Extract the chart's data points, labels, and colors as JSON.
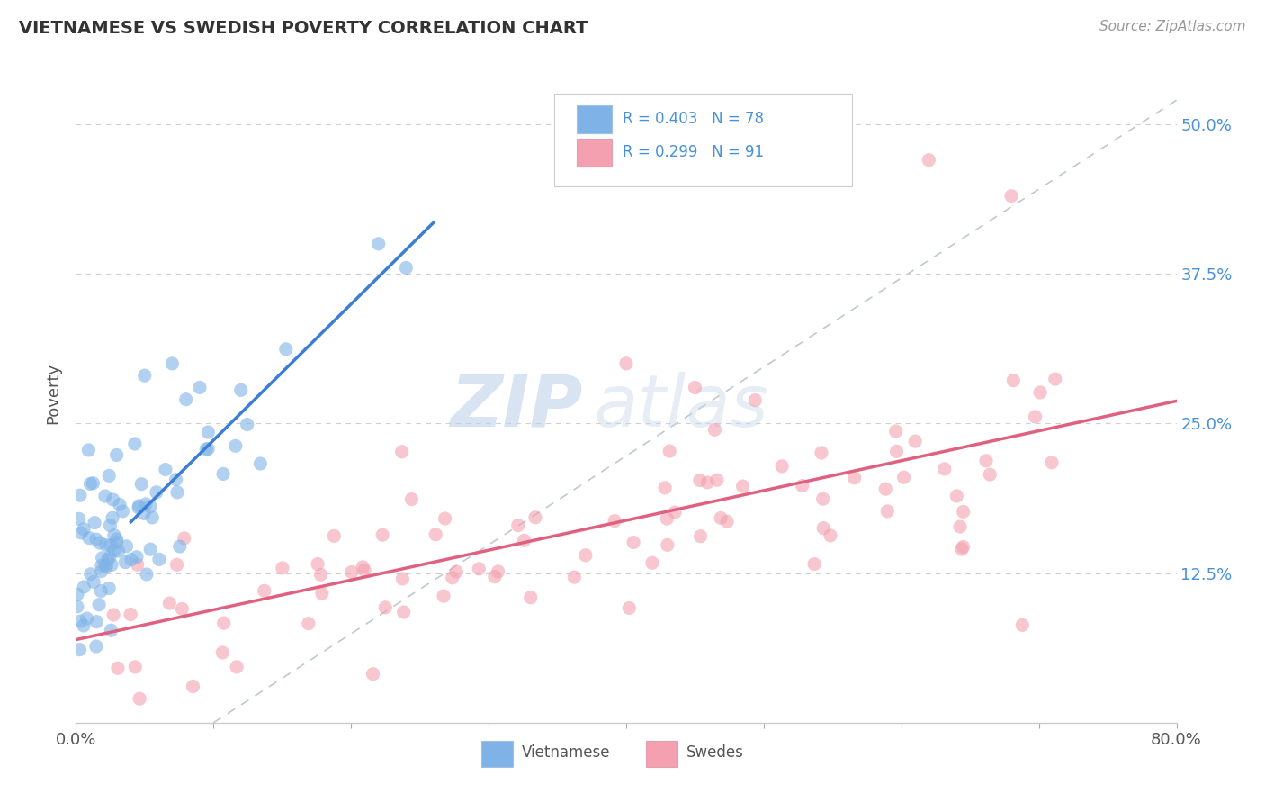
{
  "title": "VIETNAMESE VS SWEDISH POVERTY CORRELATION CHART",
  "source": "Source: ZipAtlas.com",
  "ylabel": "Poverty",
  "xlim": [
    0.0,
    0.8
  ],
  "ylim": [
    0.0,
    0.55
  ],
  "xticklabels_left": "0.0%",
  "xticklabels_right": "80.0%",
  "ytick_positions": [
    0.125,
    0.25,
    0.375,
    0.5
  ],
  "ytick_labels": [
    "12.5%",
    "25.0%",
    "37.5%",
    "50.0%"
  ],
  "background_color": "#ffffff",
  "grid_color": "#cccccc",
  "vietnamese_color": "#7fb3e8",
  "swedish_color": "#f4a0b0",
  "viet_line_color": "#3a7fd4",
  "swed_line_color": "#e06080",
  "viet_R": 0.403,
  "viet_N": 78,
  "swed_R": 0.299,
  "swed_N": 91,
  "watermark_zip": "ZIP",
  "watermark_atlas": "atlas",
  "legend_label_viet": "Vietnamese",
  "legend_label_swed": "Swedes"
}
